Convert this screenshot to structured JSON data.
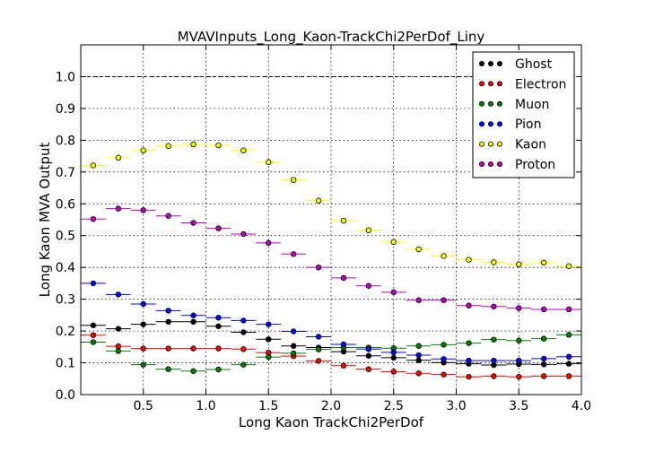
{
  "chart_data": {
    "type": "scatter",
    "title": "MVAVInputs_Long_Kaon-TrackChi2PerDof_Liny",
    "xlabel": "Long Kaon TrackChi2PerDof",
    "ylabel": "Long Kaon MVA Output",
    "xlim": [
      0.0,
      4.0
    ],
    "ylim": [
      0.0,
      1.1
    ],
    "x_ticks": [
      0.5,
      1.0,
      1.5,
      2.0,
      2.5,
      3.0,
      3.5,
      4.0
    ],
    "x_tick_labels": [
      "0.5",
      "1.0",
      "1.5",
      "2.0",
      "2.5",
      "3.0",
      "3.5",
      "4.0"
    ],
    "y_ticks": [
      0.0,
      0.1,
      0.2,
      0.3,
      0.4,
      0.5,
      0.6,
      0.7,
      0.8,
      0.9,
      1.0
    ],
    "y_tick_labels": [
      "0.0",
      "0.1",
      "0.2",
      "0.3",
      "0.4",
      "0.5",
      "0.6",
      "0.7",
      "0.8",
      "0.9",
      "1.0"
    ],
    "grid": true,
    "reference_line_y": 1.0,
    "legend_position": "top-right",
    "bin_edges": [
      0.0,
      0.2,
      0.4,
      0.6,
      0.8,
      1.0,
      1.2,
      1.4,
      1.6,
      1.8,
      2.0,
      2.2,
      2.4,
      2.6,
      2.8,
      3.0,
      3.2,
      3.4,
      3.6,
      3.8,
      4.0
    ],
    "x": [
      0.1,
      0.3,
      0.5,
      0.7,
      0.9,
      1.1,
      1.3,
      1.5,
      1.7,
      1.9,
      2.1,
      2.3,
      2.5,
      2.7,
      2.9,
      3.1,
      3.3,
      3.5,
      3.7,
      3.9
    ],
    "series": [
      {
        "name": "Ghost",
        "color": "#000000",
        "values": [
          0.218,
          0.207,
          0.221,
          0.229,
          0.229,
          0.215,
          0.196,
          0.174,
          0.153,
          0.148,
          0.135,
          0.122,
          0.116,
          0.108,
          0.101,
          0.097,
          0.093,
          0.096,
          0.095,
          0.097
        ]
      },
      {
        "name": "Electron",
        "color": "#ff0000",
        "values": [
          0.187,
          0.152,
          0.145,
          0.145,
          0.145,
          0.145,
          0.143,
          0.132,
          0.121,
          0.106,
          0.091,
          0.08,
          0.072,
          0.067,
          0.063,
          0.056,
          0.058,
          0.056,
          0.058,
          0.058
        ]
      },
      {
        "name": "Muon",
        "color": "#008000",
        "values": [
          0.165,
          0.137,
          0.094,
          0.08,
          0.074,
          0.079,
          0.094,
          0.118,
          0.13,
          0.142,
          0.148,
          0.148,
          0.146,
          0.153,
          0.157,
          0.162,
          0.173,
          0.17,
          0.176,
          0.188
        ]
      },
      {
        "name": "Pion",
        "color": "#0000ff",
        "values": [
          0.35,
          0.315,
          0.285,
          0.264,
          0.249,
          0.242,
          0.233,
          0.221,
          0.199,
          0.182,
          0.158,
          0.143,
          0.133,
          0.124,
          0.112,
          0.107,
          0.107,
          0.107,
          0.113,
          0.119
        ]
      },
      {
        "name": "Kaon",
        "color": "#ffff00",
        "values": [
          0.721,
          0.745,
          0.768,
          0.782,
          0.787,
          0.784,
          0.768,
          0.731,
          0.675,
          0.61,
          0.547,
          0.517,
          0.48,
          0.457,
          0.436,
          0.424,
          0.416,
          0.41,
          0.415,
          0.404
        ]
      },
      {
        "name": "Proton",
        "color": "#bf00bf",
        "values": [
          0.552,
          0.585,
          0.58,
          0.562,
          0.54,
          0.523,
          0.505,
          0.477,
          0.442,
          0.4,
          0.367,
          0.342,
          0.322,
          0.297,
          0.297,
          0.28,
          0.277,
          0.272,
          0.268,
          0.268
        ]
      }
    ]
  }
}
